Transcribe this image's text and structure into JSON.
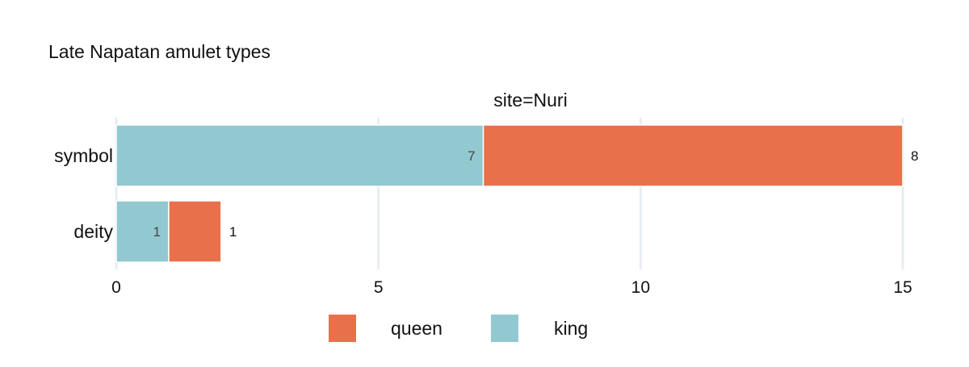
{
  "chart_data": {
    "type": "bar",
    "orientation": "horizontal",
    "barmode": "stack",
    "title": "Late Napatan amulet types",
    "facet_label": "site=Nuri",
    "categories": [
      "symbol",
      "deity"
    ],
    "series": [
      {
        "name": "king",
        "color": "#92c9d0",
        "values": [
          7,
          1
        ]
      },
      {
        "name": "queen",
        "color": "#e8714c",
        "values": [
          8,
          1
        ]
      }
    ],
    "xlim": [
      0,
      15
    ],
    "xticks": [
      0,
      5,
      10,
      15
    ],
    "grid": true,
    "legend": {
      "position": "bottom",
      "order": [
        "queen",
        "king"
      ]
    }
  }
}
